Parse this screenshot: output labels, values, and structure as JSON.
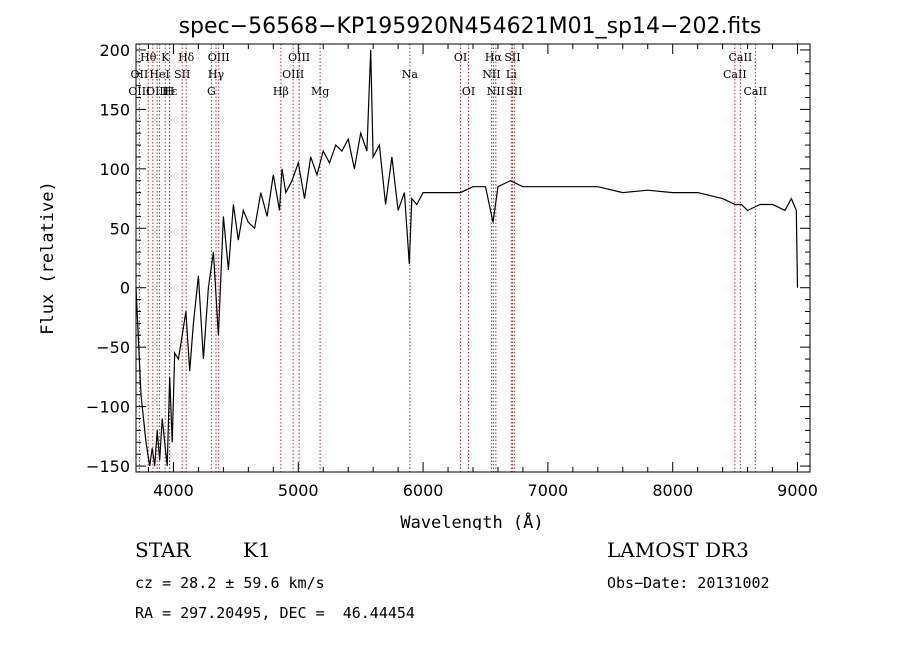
{
  "chart_data": {
    "type": "line",
    "title": "spec−56568−KP195920N454621M01_sp14−202.fits",
    "xlabel": "Wavelength (Å)",
    "ylabel": "Flux (relative)",
    "xlim": [
      3700,
      9100
    ],
    "ylim": [
      -155,
      205
    ],
    "xticks": [
      4000,
      5000,
      6000,
      7000,
      8000,
      9000
    ],
    "yticks": [
      -150,
      -100,
      -50,
      0,
      50,
      100,
      150,
      200
    ],
    "grid": false,
    "legend": "none",
    "series": [
      {
        "color": "#000000",
        "x": [
          3700,
          3740,
          3780,
          3810,
          3830,
          3850,
          3870,
          3890,
          3910,
          3930,
          3950,
          3970,
          3990,
          4010,
          4040,
          4070,
          4100,
          4130,
          4160,
          4200,
          4240,
          4280,
          4320,
          4360,
          4400,
          4440,
          4480,
          4520,
          4560,
          4600,
          4650,
          4700,
          4750,
          4800,
          4850,
          4870,
          4900,
          4950,
          5000,
          5050,
          5100,
          5150,
          5200,
          5250,
          5300,
          5350,
          5400,
          5450,
          5500,
          5550,
          5580,
          5600,
          5650,
          5700,
          5750,
          5800,
          5850,
          5890,
          5910,
          5950,
          6000,
          6100,
          6200,
          6300,
          6400,
          6500,
          6560,
          6600,
          6700,
          6800,
          6900,
          7000,
          7200,
          7400,
          7600,
          7800,
          8000,
          8200,
          8400,
          8500,
          8550,
          8600,
          8700,
          8800,
          8900,
          8950,
          8990,
          9000
        ],
        "y": [
          0,
          -90,
          -130,
          -150,
          -135,
          -150,
          -120,
          -145,
          -110,
          -130,
          -150,
          -75,
          -130,
          -55,
          -60,
          -40,
          -20,
          -70,
          -30,
          10,
          -60,
          0,
          30,
          -40,
          60,
          15,
          70,
          40,
          65,
          55,
          50,
          80,
          60,
          95,
          65,
          100,
          80,
          90,
          105,
          75,
          110,
          95,
          115,
          105,
          120,
          115,
          125,
          100,
          130,
          115,
          200,
          110,
          120,
          70,
          110,
          65,
          80,
          20,
          75,
          70,
          80,
          80,
          80,
          80,
          85,
          85,
          55,
          85,
          90,
          85,
          85,
          85,
          85,
          85,
          80,
          82,
          80,
          80,
          75,
          70,
          70,
          65,
          70,
          70,
          65,
          75,
          65,
          0
        ]
      }
    ],
    "lines": [
      {
        "wl": 3727,
        "top": "",
        "mid": "OII",
        "bot": "OIII"
      },
      {
        "wl": 3798,
        "top": "Hθ",
        "mid": "",
        "bot": ""
      },
      {
        "wl": 3835,
        "top": "",
        "mid": "",
        "bot": ""
      },
      {
        "wl": 3869,
        "top": "",
        "mid": "",
        "bot": "OIII"
      },
      {
        "wl": 3889,
        "top": "",
        "mid": "HeI",
        "bot": ""
      },
      {
        "wl": 3934,
        "top": "K",
        "mid": "",
        "bot": ""
      },
      {
        "wl": 3970,
        "top": "",
        "mid": "",
        "bot": "Hε"
      },
      {
        "wl": 3968,
        "top": "",
        "mid": "",
        "bot": "H"
      },
      {
        "wl": 4070,
        "top": "",
        "mid": "SII",
        "bot": ""
      },
      {
        "wl": 4102,
        "top": "Hδ",
        "mid": "",
        "bot": ""
      },
      {
        "wl": 4304,
        "top": "",
        "mid": "",
        "bot": "G"
      },
      {
        "wl": 4341,
        "top": "",
        "mid": "Hγ",
        "bot": ""
      },
      {
        "wl": 4363,
        "top": "OIII",
        "mid": "",
        "bot": ""
      },
      {
        "wl": 4861,
        "top": "",
        "mid": "",
        "bot": "Hβ"
      },
      {
        "wl": 4959,
        "top": "",
        "mid": "OIII",
        "bot": ""
      },
      {
        "wl": 5007,
        "top": "OIII",
        "mid": "",
        "bot": ""
      },
      {
        "wl": 5175,
        "top": "",
        "mid": "",
        "bot": "Mg"
      },
      {
        "wl": 5894,
        "top": "",
        "mid": "Na",
        "bot": ""
      },
      {
        "wl": 6300,
        "top": "OI",
        "mid": "",
        "bot": ""
      },
      {
        "wl": 6364,
        "top": "",
        "mid": "",
        "bot": "OI"
      },
      {
        "wl": 6548,
        "top": "",
        "mid": "NII",
        "bot": ""
      },
      {
        "wl": 6563,
        "top": "Hα",
        "mid": "",
        "bot": ""
      },
      {
        "wl": 6583,
        "top": "",
        "mid": "",
        "bot": "NII"
      },
      {
        "wl": 6707,
        "top": "",
        "mid": "Li",
        "bot": ""
      },
      {
        "wl": 6716,
        "top": "SII",
        "mid": "",
        "bot": ""
      },
      {
        "wl": 6731,
        "top": "",
        "mid": "",
        "bot": "SII"
      },
      {
        "wl": 8498,
        "top": "",
        "mid": "CaII",
        "bot": ""
      },
      {
        "wl": 8542,
        "top": "CaII",
        "mid": "",
        "bot": ""
      },
      {
        "wl": 8662,
        "top": "",
        "mid": "",
        "bot": "CaII"
      }
    ]
  },
  "info": {
    "class_label": "STAR",
    "subclass_label": "K1",
    "survey": "LAMOST DR3",
    "cz": "cz = 28.2 ± 59.6 km/s",
    "obs_date": "Obs−Date: 20131002",
    "coords": "RA = 297.20495, DEC =  46.44454"
  }
}
